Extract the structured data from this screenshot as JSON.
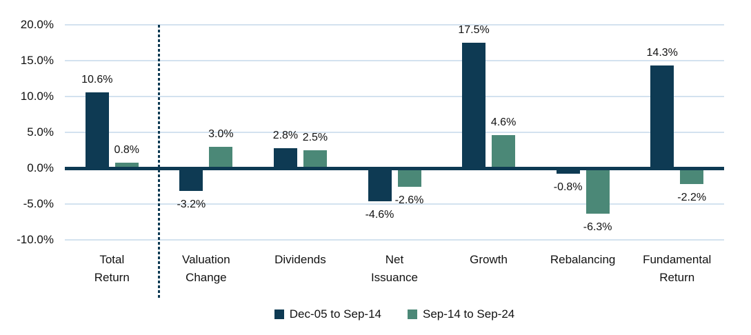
{
  "chart_data": {
    "type": "bar",
    "title": "",
    "xlabel": "",
    "ylabel": "",
    "grid": true,
    "legend_position": "bottom",
    "categories": [
      [
        "Total",
        "Return"
      ],
      [
        "Valuation",
        "Change"
      ],
      [
        "Dividends"
      ],
      [
        "Net",
        "Issuance"
      ],
      [
        "Growth"
      ],
      [
        "Rebalancing"
      ],
      [
        "Fundamental",
        "Return"
      ]
    ],
    "series": [
      {
        "name": "Dec-05 to Sep-14",
        "color": "#0e3a53",
        "values": [
          10.6,
          -3.2,
          2.8,
          -4.6,
          17.5,
          -0.8,
          14.3
        ],
        "labels": [
          "10.6%",
          "-3.2%",
          "2.8%",
          "-4.6%",
          "17.5%",
          "-0.8%",
          "14.3%"
        ]
      },
      {
        "name": "Sep-14 to Sep-24",
        "color": "#4b8877",
        "values": [
          0.8,
          3.0,
          2.5,
          -2.6,
          4.6,
          -6.3,
          -2.2
        ],
        "labels": [
          "0.8%",
          "3.0%",
          "2.5%",
          "-2.6%",
          "4.6%",
          "-6.3%",
          "-2.2%"
        ]
      }
    ],
    "y_axis": {
      "ylim": [
        -10,
        20
      ],
      "tick_values": [
        20,
        15,
        10,
        5,
        0,
        -5,
        -10
      ],
      "tick_labels": [
        "20.0%",
        "15.0%",
        "10.0%",
        "5.0%",
        "0.0%",
        "-5.0%",
        "-10.0%"
      ]
    },
    "separator_after_category": 1,
    "colors": {
      "bar_navy": "#0e3a53",
      "bar_green": "#4b8877",
      "gridline": "#d3e2ef",
      "baseline": "#0e3a53",
      "separator": "#0e3a53",
      "text": "#111111",
      "background": "#ffffff"
    }
  }
}
